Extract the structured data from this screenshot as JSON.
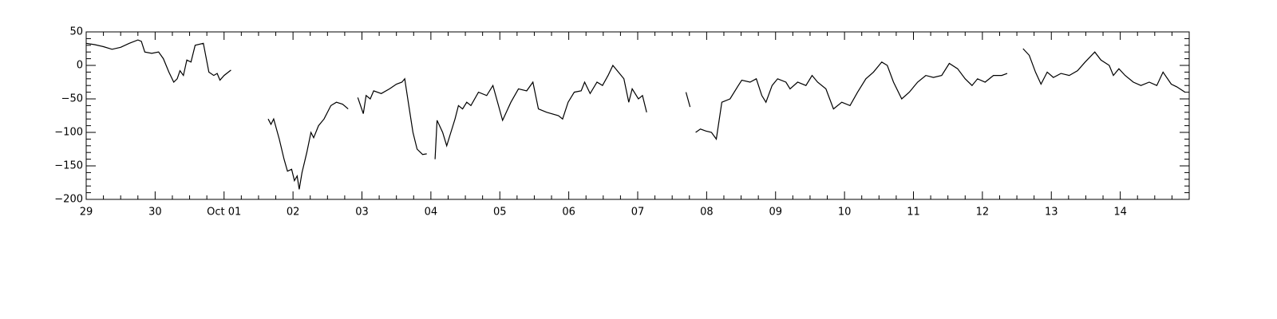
{
  "chart_data": {
    "type": "line",
    "x": [
      0,
      0.125,
      0.25,
      0.375,
      0.5,
      0.625,
      0.75,
      0.8,
      0.85,
      0.95,
      1.05,
      1.12,
      1.2,
      1.27,
      1.32,
      1.36,
      1.41,
      1.46,
      1.52,
      1.58,
      1.7,
      1.78,
      1.85,
      1.9,
      1.94,
      2.0,
      2.1,
      2.3,
      2.64,
      2.68,
      2.72,
      2.8,
      2.87,
      2.92,
      2.98,
      3.02,
      3.06,
      3.09,
      3.13,
      3.2,
      3.26,
      3.3,
      3.37,
      3.45,
      3.55,
      3.63,
      3.72,
      3.8,
      3.9,
      3.94,
      4.02,
      4.06,
      4.12,
      4.17,
      4.28,
      4.4,
      4.5,
      4.58,
      4.62,
      4.68,
      4.74,
      4.8,
      4.88,
      4.94,
      4.98,
      5.06,
      5.09,
      5.17,
      5.23,
      5.29,
      5.35,
      5.4,
      5.46,
      5.52,
      5.58,
      5.69,
      5.81,
      5.9,
      6.04,
      6.16,
      6.27,
      6.39,
      6.48,
      6.56,
      6.68,
      6.85,
      6.91,
      6.99,
      7.08,
      7.18,
      7.23,
      7.31,
      7.41,
      7.49,
      7.57,
      7.64,
      7.72,
      7.8,
      7.87,
      7.92,
      8.01,
      8.07,
      8.13,
      8.5,
      8.7,
      8.76,
      8.8,
      8.84,
      8.91,
      8.99,
      9.07,
      9.14,
      9.22,
      9.34,
      9.46,
      9.51,
      9.63,
      9.72,
      9.8,
      9.86,
      9.95,
      10.03,
      10.15,
      10.21,
      10.32,
      10.44,
      10.53,
      10.61,
      10.73,
      10.84,
      10.96,
      11.08,
      11.19,
      11.31,
      11.42,
      11.54,
      11.62,
      11.71,
      11.83,
      11.94,
      12.06,
      12.18,
      12.29,
      12.41,
      12.52,
      12.64,
      12.75,
      12.85,
      12.93,
      13.04,
      13.16,
      13.28,
      13.36,
      13.5,
      13.59,
      13.68,
      13.77,
      13.85,
      13.94,
      14.03,
      14.14,
      14.26,
      14.38,
      14.49,
      14.63,
      14.72,
      14.84,
      14.9,
      14.98,
      15.07,
      15.19,
      15.3,
      15.42,
      15.53,
      15.62,
      15.74,
      15.82,
      15.94
    ],
    "series": [
      {
        "color": "#000000",
        "values": [
          33,
          31,
          28,
          24,
          27,
          33,
          38,
          36,
          20,
          18,
          20,
          10,
          -10,
          -25,
          -20,
          -8,
          -15,
          8,
          5,
          30,
          33,
          -10,
          -15,
          -12,
          -22,
          -15,
          -7,
          null,
          -80,
          -88,
          -80,
          -110,
          -140,
          -158,
          -155,
          -172,
          -165,
          -185,
          -160,
          -130,
          -100,
          -108,
          -90,
          -80,
          -60,
          -55,
          -58,
          -65,
          null,
          -48,
          -72,
          -45,
          -50,
          -38,
          -42,
          -35,
          -28,
          -25,
          -20,
          -60,
          -100,
          -125,
          -133,
          -132,
          null,
          -140,
          -82,
          -100,
          -120,
          -100,
          -80,
          -60,
          -65,
          -55,
          -60,
          -40,
          -45,
          -30,
          -82,
          -55,
          -35,
          -38,
          -25,
          -65,
          -70,
          -75,
          -80,
          -55,
          -40,
          -38,
          -25,
          -42,
          -25,
          -30,
          -15,
          0,
          -10,
          -20,
          -55,
          -35,
          -50,
          -45,
          -70,
          null,
          -40,
          -62,
          null,
          -100,
          -95,
          -98,
          -100,
          -110,
          -55,
          -50,
          -30,
          -22,
          -25,
          -20,
          -45,
          -55,
          -30,
          -20,
          -25,
          -35,
          -25,
          -30,
          -15,
          -25,
          -35,
          -65,
          -55,
          -60,
          -40,
          -20,
          -10,
          5,
          0,
          -25,
          -50,
          -40,
          -25,
          -15,
          -18,
          -15,
          3,
          -5,
          -20,
          -30,
          -20,
          -25,
          -15,
          -15,
          -12,
          null,
          25,
          15,
          -10,
          -28,
          -10,
          -18,
          -12,
          -15,
          -8,
          5,
          20,
          8,
          0,
          -15,
          -5,
          -15,
          -25,
          -30,
          -25,
          -30,
          -10,
          -28,
          -32,
          -40
        ]
      }
    ],
    "xlim": [
      0,
      16
    ],
    "xticks": [
      {
        "value": 0,
        "label": "29"
      },
      {
        "value": 1,
        "label": "30"
      },
      {
        "value": 2,
        "label": "Oct 01"
      },
      {
        "value": 3,
        "label": "02"
      },
      {
        "value": 4,
        "label": "03"
      },
      {
        "value": 5,
        "label": "04"
      },
      {
        "value": 6,
        "label": "05"
      },
      {
        "value": 7,
        "label": "06"
      },
      {
        "value": 8,
        "label": "07"
      },
      {
        "value": 9,
        "label": "08"
      },
      {
        "value": 10,
        "label": "09"
      },
      {
        "value": 11,
        "label": "10"
      },
      {
        "value": 12,
        "label": "11"
      },
      {
        "value": 13,
        "label": "12"
      },
      {
        "value": 14,
        "label": "13"
      },
      {
        "value": 15,
        "label": "14"
      }
    ],
    "ylim": [
      -200,
      50
    ],
    "yticks": [
      {
        "value": -200,
        "label": "−200"
      },
      {
        "value": -150,
        "label": "−150"
      },
      {
        "value": -100,
        "label": "−100"
      },
      {
        "value": -50,
        "label": "−50"
      },
      0,
      50
    ]
  }
}
